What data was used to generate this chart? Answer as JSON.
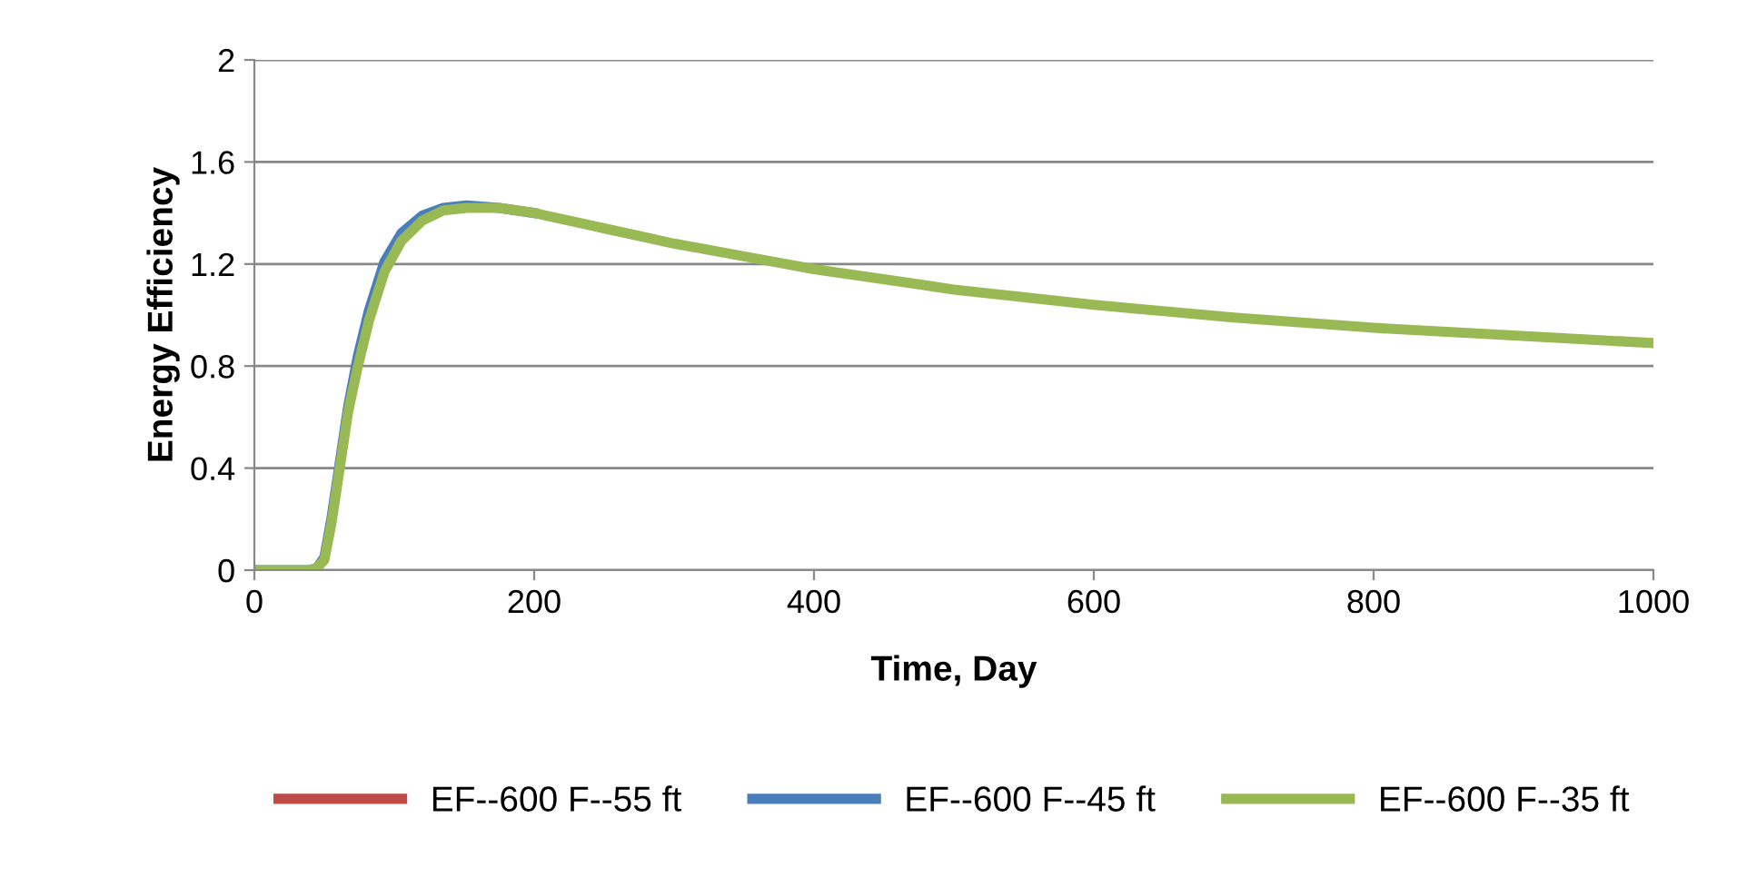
{
  "chart_data": {
    "type": "line",
    "xlabel": "Time, Day",
    "ylabel": "Energy Efficiency",
    "xlim": [
      0,
      1000
    ],
    "ylim": [
      0,
      2
    ],
    "xticks": [
      0,
      200,
      400,
      600,
      800,
      1000
    ],
    "yticks": [
      0,
      0.4,
      0.8,
      1.2,
      1.6,
      2
    ],
    "grid": "y",
    "legend": "bottom",
    "marker": "none",
    "line_style": "solid",
    "series": [
      {
        "name": "EF--600 F--55 ft",
        "color": "#be4b48"
      },
      {
        "name": "EF--600 F--45 ft",
        "color": "#4a7ebb",
        "x": [
          0,
          20,
          40,
          45,
          50,
          55,
          61,
          67,
          74,
          82,
          93,
          105,
          120,
          135,
          152,
          175,
          200
        ],
        "values": [
          0,
          0,
          0,
          0.01,
          0.05,
          0.2,
          0.42,
          0.64,
          0.84,
          1.02,
          1.21,
          1.32,
          1.39,
          1.42,
          1.43,
          1.42,
          1.4
        ]
      },
      {
        "name": "EF--600 F--35 ft",
        "color": "#98b954",
        "x": [
          0,
          20,
          40,
          45,
          50,
          55,
          61,
          67,
          74,
          82,
          93,
          105,
          120,
          135,
          152,
          175,
          200,
          250,
          300,
          350,
          400,
          500,
          600,
          700,
          800,
          900,
          1000
        ],
        "values": [
          0,
          0,
          0,
          0.01,
          0.04,
          0.18,
          0.4,
          0.62,
          0.8,
          0.98,
          1.17,
          1.29,
          1.37,
          1.41,
          1.42,
          1.42,
          1.4,
          1.34,
          1.28,
          1.23,
          1.18,
          1.1,
          1.04,
          0.99,
          0.95,
          0.92,
          0.89
        ]
      }
    ]
  }
}
